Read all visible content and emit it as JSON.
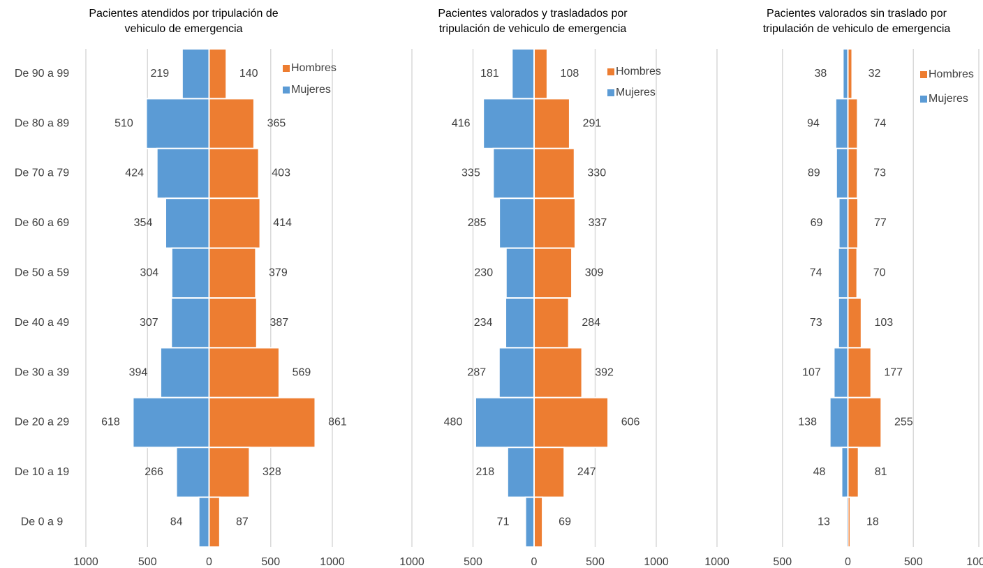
{
  "chart_data": [
    {
      "type": "pyramid",
      "title": [
        "Pacientes atendidos por tripulación de",
        "vehiculo de emergencia"
      ],
      "categories": [
        "De 90 a 99",
        "De 80 a 89",
        "De 70 a 79",
        "De 60 a 69",
        "De 50 a 59",
        "De 40 a 49",
        "De 30 a 39",
        "De 20 a 29",
        "De 10 a 19",
        "De 0 a 9"
      ],
      "series": [
        {
          "name": "Hombres",
          "color": "#ed7d31",
          "side": "right",
          "label_color": "#404040",
          "values": [
            140,
            365,
            403,
            414,
            379,
            387,
            569,
            861,
            328,
            87
          ]
        },
        {
          "name": "Mujeres",
          "color": "#5b9bd5",
          "side": "left",
          "label_color": "#e8312f",
          "values": [
            219,
            510,
            424,
            354,
            304,
            307,
            394,
            618,
            266,
            84
          ]
        }
      ],
      "xlim": [
        -1000,
        1000
      ],
      "xticks": [
        {
          "value": -1000,
          "label": "1000"
        },
        {
          "value": -500,
          "label": "500"
        },
        0,
        500,
        1000
      ],
      "grid": true
    },
    {
      "type": "pyramid",
      "title": [
        "Pacientes valorados y trasladados por",
        "tripulación de vehiculo de emergencia"
      ],
      "series": [
        {
          "name": "Hombres",
          "color": "#ed7d31",
          "side": "right",
          "label_color": "#404040",
          "values": [
            108,
            291,
            330,
            337,
            309,
            284,
            392,
            606,
            247,
            69
          ]
        },
        {
          "name": "Mujeres",
          "color": "#5b9bd5",
          "side": "left",
          "label_color": "#e8312f",
          "values": [
            181,
            416,
            335,
            285,
            230,
            234,
            287,
            480,
            218,
            71
          ]
        }
      ],
      "xlim": [
        -1000,
        1000
      ],
      "xticks": [
        {
          "value": -1000,
          "label": "1000"
        },
        {
          "value": -500,
          "label": "500"
        },
        0,
        500,
        1000
      ],
      "grid": true
    },
    {
      "type": "pyramid",
      "title": [
        "Pacientes valorados sin traslado por",
        "tripulación de vehiculo de emergencia"
      ],
      "series": [
        {
          "name": "Hombres",
          "color": "#ed7d31",
          "side": "right",
          "label_color": "#404040",
          "values": [
            32,
            74,
            73,
            77,
            70,
            103,
            177,
            255,
            81,
            18
          ]
        },
        {
          "name": "Mujeres",
          "color": "#5b9bd5",
          "side": "left",
          "label_color": "#e8312f",
          "values": [
            38,
            94,
            89,
            69,
            74,
            73,
            107,
            138,
            48,
            13
          ]
        }
      ],
      "xlim": [
        -1000,
        1000
      ],
      "xticks": [
        {
          "value": -1000,
          "label": "1000"
        },
        {
          "value": -500,
          "label": "500"
        },
        0,
        500,
        1000
      ],
      "grid": true
    }
  ]
}
